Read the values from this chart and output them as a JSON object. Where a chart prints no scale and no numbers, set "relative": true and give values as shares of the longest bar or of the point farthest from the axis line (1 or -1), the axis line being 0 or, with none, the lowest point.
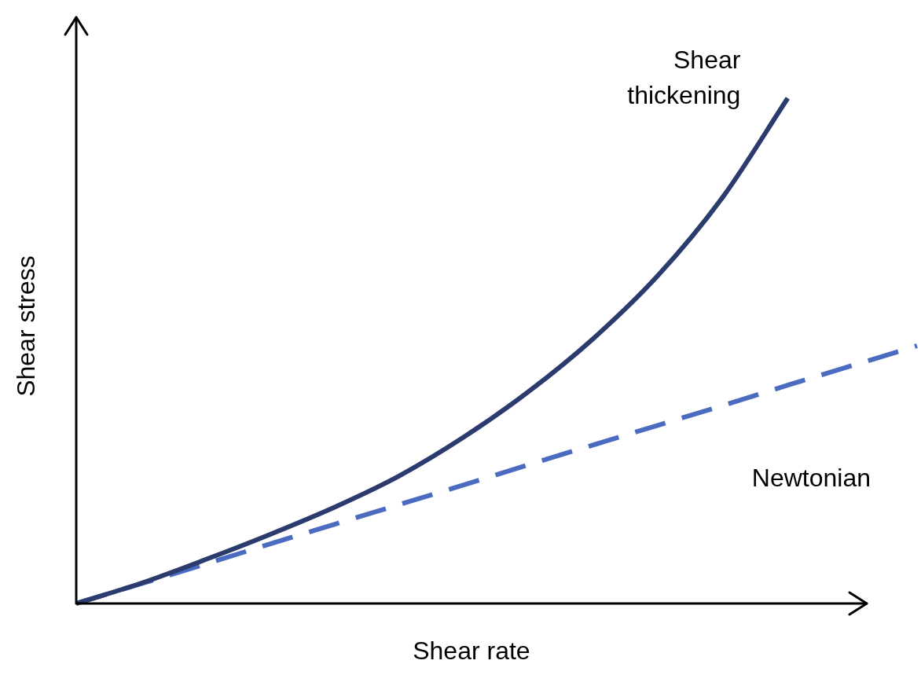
{
  "chart_data": {
    "type": "line",
    "relative": true,
    "xlabel": "Shear rate",
    "ylabel": "Shear stress",
    "categories": [
      null,
      null,
      null,
      null,
      null,
      null,
      null,
      null,
      null,
      null,
      null,
      null,
      null,
      null
    ],
    "series": [
      {
        "name": "Shear thickening",
        "color": "#2c3b6e",
        "line_style": "solid",
        "values": [
          0,
          0.04,
          0.087,
          0.137,
          0.191,
          0.253,
          0.33,
          0.42,
          0.525,
          0.65,
          0.805,
          1,
          null,
          null
        ]
      },
      {
        "name": "Newtonian",
        "color": "#4a6bbf",
        "line_style": "dashed",
        "values": [
          0,
          0.039,
          0.078,
          0.118,
          0.157,
          0.196,
          0.235,
          0.275,
          0.314,
          0.353,
          0.392,
          0.432,
          0.471,
          0.51
        ]
      }
    ],
    "legend": false,
    "marker": "none"
  }
}
